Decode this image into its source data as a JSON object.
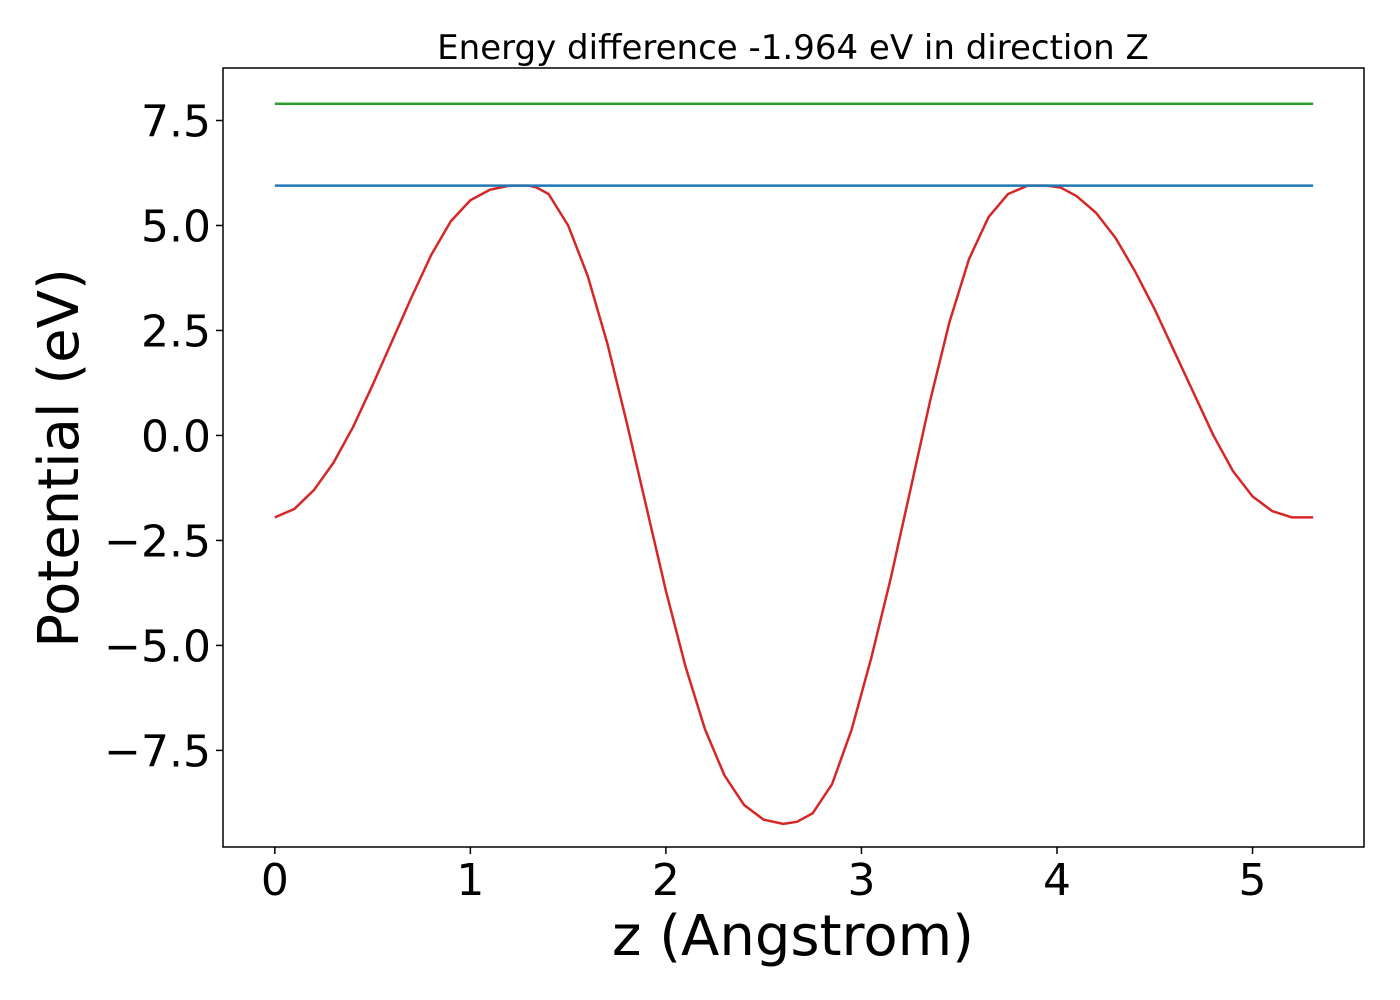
{
  "chart_data": {
    "type": "line",
    "title": "Energy difference -1.964 eV in direction Z",
    "xlabel": "z (Angstrom)",
    "ylabel": "Potential (eV)",
    "xlim": [
      -0.265,
      5.57
    ],
    "ylim": [
      -9.8,
      8.75
    ],
    "x_ticks": [
      0,
      1,
      2,
      3,
      4,
      5
    ],
    "x_tick_labels": [
      "0",
      "1",
      "2",
      "3",
      "4",
      "5"
    ],
    "y_ticks": [
      7.5,
      5.0,
      2.5,
      0.0,
      -2.5,
      -5.0,
      -7.5
    ],
    "y_tick_labels": [
      "7.5",
      "5.0",
      "2.5",
      "0.0",
      "−2.5",
      "−5.0",
      "−7.5"
    ],
    "grid": false,
    "series": [
      {
        "color": "#d62728",
        "x": [
          0.0,
          0.1,
          0.2,
          0.3,
          0.4,
          0.5,
          0.6,
          0.7,
          0.8,
          0.9,
          1.0,
          1.1,
          1.2,
          1.3,
          1.34,
          1.4,
          1.5,
          1.6,
          1.7,
          1.8,
          1.9,
          2.0,
          2.1,
          2.2,
          2.3,
          2.4,
          2.5,
          2.6,
          2.67,
          2.75,
          2.85,
          2.95,
          3.05,
          3.15,
          3.25,
          3.35,
          3.45,
          3.55,
          3.65,
          3.75,
          3.85,
          3.95,
          4.02,
          4.1,
          4.2,
          4.3,
          4.4,
          4.5,
          4.6,
          4.7,
          4.8,
          4.9,
          5.0,
          5.1,
          5.2,
          5.31
        ],
        "y": [
          -1.95,
          -1.75,
          -1.3,
          -0.65,
          0.2,
          1.2,
          2.25,
          3.3,
          4.3,
          5.1,
          5.6,
          5.85,
          5.95,
          5.95,
          5.9,
          5.75,
          5.0,
          3.8,
          2.2,
          0.3,
          -1.7,
          -3.7,
          -5.5,
          -7.0,
          -8.1,
          -8.8,
          -9.15,
          -9.25,
          -9.2,
          -9.0,
          -8.3,
          -7.0,
          -5.3,
          -3.4,
          -1.3,
          0.8,
          2.7,
          4.2,
          5.2,
          5.75,
          5.95,
          5.95,
          5.9,
          5.7,
          5.3,
          4.7,
          3.9,
          3.0,
          2.0,
          1.0,
          0.0,
          -0.85,
          -1.45,
          -1.8,
          -1.95,
          -1.95
        ]
      },
      {
        "color": "#1f77b4",
        "x": [
          0.0,
          5.31
        ],
        "y": [
          5.95,
          5.95
        ]
      },
      {
        "color": "#2ca02c",
        "x": [
          0.0,
          5.31
        ],
        "y": [
          7.9,
          7.9
        ]
      }
    ]
  }
}
